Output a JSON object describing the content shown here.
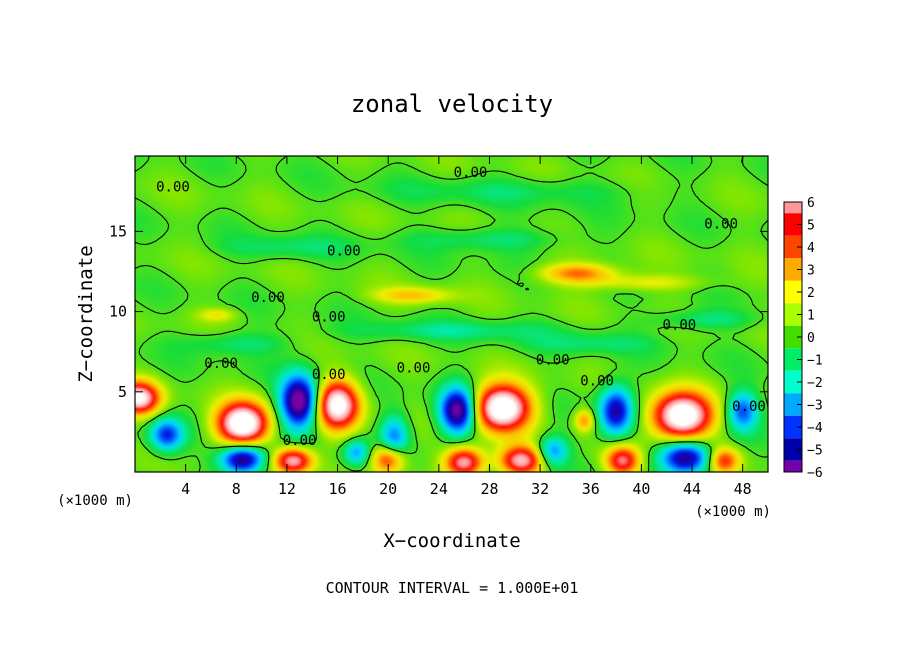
{
  "chart_data": {
    "type": "heatmap",
    "title": "zonal velocity",
    "xlabel": "X−coordinate",
    "ylabel": "Z−coordinate",
    "x_unit": "(×1000 m)",
    "y_unit": "(×1000 m)",
    "xlim": [
      0,
      50
    ],
    "ylim": [
      0,
      19.7
    ],
    "xticks": [
      4,
      8,
      12,
      16,
      20,
      24,
      28,
      32,
      36,
      40,
      44,
      48
    ],
    "yticks": [
      5,
      10,
      15
    ],
    "colorbar": {
      "ticks": [
        6,
        5,
        4,
        3,
        2,
        1,
        0,
        -1,
        -2,
        -3,
        -4,
        -5,
        -6
      ],
      "tick_labels": [
        "6",
        "5",
        "4",
        "3",
        "2",
        "1",
        "0",
        "−1",
        "−2",
        "−3",
        "−4",
        "−5",
        "−6"
      ],
      "range": [
        -6,
        6
      ],
      "colors": [
        "#ff9999",
        "#ff0000",
        "#ff4400",
        "#ffaa00",
        "#ffff00",
        "#aaff00",
        "#44dd00",
        "#00ee66",
        "#00ffcc",
        "#00aaff",
        "#0033ff",
        "#0000aa",
        "#7700aa"
      ]
    },
    "contour_labels": [
      {
        "text": "0.00",
        "x": 3.0,
        "z": 17.8
      },
      {
        "text": "0.00",
        "x": 26.5,
        "z": 18.7
      },
      {
        "text": "0.00",
        "x": 46.3,
        "z": 15.5
      },
      {
        "text": "0.00",
        "x": 16.5,
        "z": 13.8
      },
      {
        "text": "0.00",
        "x": 10.5,
        "z": 10.9
      },
      {
        "text": "0.00",
        "x": 15.3,
        "z": 9.7
      },
      {
        "text": "0.00",
        "x": 43.0,
        "z": 9.2
      },
      {
        "text": "0.00",
        "x": 6.8,
        "z": 6.8
      },
      {
        "text": "0.00",
        "x": 15.3,
        "z": 6.1
      },
      {
        "text": "0.00",
        "x": 22.0,
        "z": 6.5
      },
      {
        "text": "0.00",
        "x": 33.0,
        "z": 7.0
      },
      {
        "text": "0.00",
        "x": 36.5,
        "z": 5.7
      },
      {
        "text": "0.00",
        "x": 48.5,
        "z": 4.1
      },
      {
        "text": "0.00",
        "x": 13.0,
        "z": 2.0
      }
    ],
    "contour_interval_text": "CONTOUR INTERVAL = 1.000E+01"
  }
}
